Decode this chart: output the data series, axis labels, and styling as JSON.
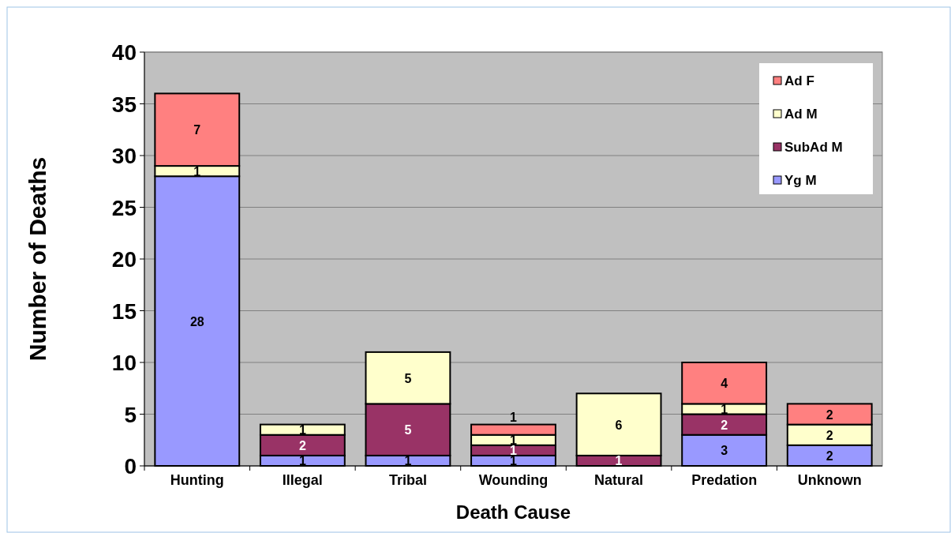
{
  "chart_data": {
    "type": "bar",
    "stacked": true,
    "xlabel": "Death Cause",
    "ylabel": "Number of Deaths",
    "categories": [
      "Hunting",
      "Illegal",
      "Tribal",
      "Wounding",
      "Natural",
      "Predation",
      "Unknown"
    ],
    "series": [
      {
        "name": "Yg M",
        "color": "#9999ff",
        "values": [
          28,
          1,
          1,
          1,
          0,
          3,
          2
        ],
        "value_labels": [
          "28",
          "1",
          "1",
          "1",
          null,
          "3",
          "2"
        ]
      },
      {
        "name": "SubAd M",
        "color": "#993366",
        "values": [
          0,
          2,
          5,
          1,
          1,
          2,
          0
        ],
        "value_labels": [
          null,
          "2",
          "5",
          "1",
          "1",
          "2",
          null
        ]
      },
      {
        "name": "Ad M",
        "color": "#ffffcc",
        "values": [
          1,
          1,
          5,
          1,
          6,
          1,
          2
        ],
        "value_labels": [
          "1",
          "1",
          "5",
          "1",
          "6",
          "1",
          "2"
        ]
      },
      {
        "name": "Ad F",
        "color": "#ff8080",
        "values": [
          7,
          0,
          0,
          1,
          0,
          4,
          2
        ],
        "value_labels": [
          "7",
          null,
          null,
          "1",
          null,
          "4",
          "2"
        ]
      }
    ],
    "ylim": [
      0,
      40
    ],
    "yticks": [
      0,
      5,
      10,
      15,
      20,
      25,
      30,
      35,
      40
    ],
    "grid": "y",
    "legend": "top right"
  }
}
